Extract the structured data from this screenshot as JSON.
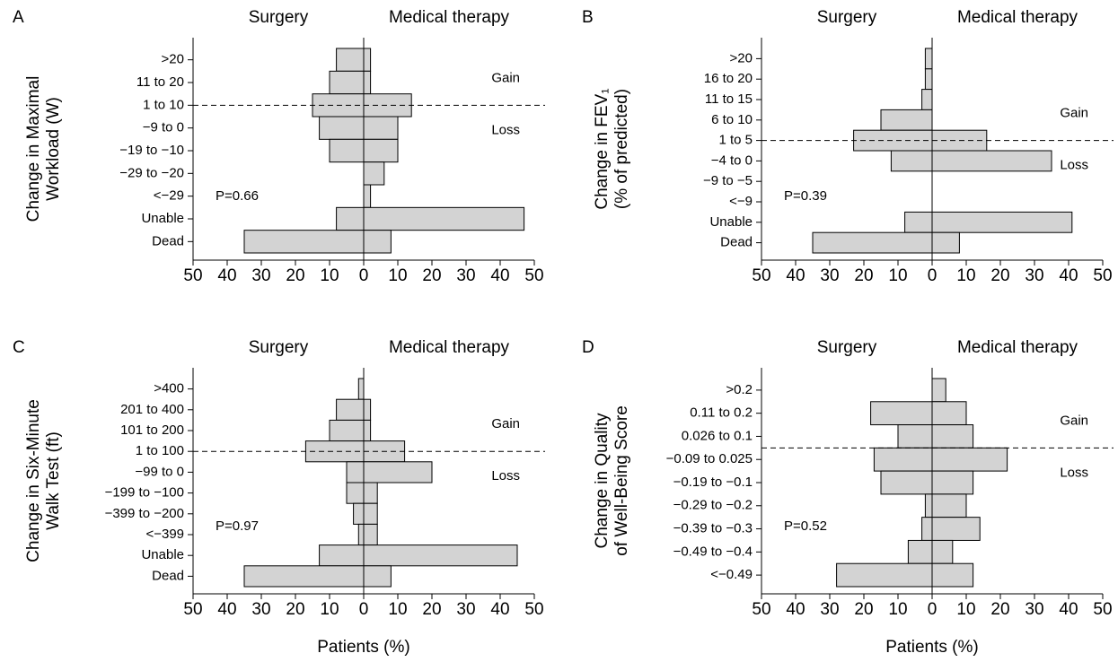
{
  "chart_data": [
    {
      "type": "bar",
      "orientation": "horizontal",
      "panel": "A",
      "ylabel": [
        "Change in Maximal",
        "Workload (W)"
      ],
      "categories": [
        ">20",
        "11 to 20",
        "1 to 10",
        "−9 to 0",
        "−19 to −10",
        "−29 to −20",
        "<−29",
        "Unable",
        "Dead"
      ],
      "series": [
        {
          "name": "Surgery",
          "color": "#d3d3d3",
          "side": "left",
          "values": [
            8,
            10,
            15,
            13,
            10,
            0,
            0,
            8,
            35
          ]
        },
        {
          "name": "Medical therapy",
          "color": "#d3d3d3",
          "side": "right",
          "values": [
            2,
            2,
            14,
            10,
            10,
            6,
            2,
            47,
            8
          ]
        }
      ],
      "xlim": [
        -50,
        50
      ],
      "xticks": [
        {
          "value": -50,
          "label": "50"
        },
        {
          "value": -40,
          "label": "40"
        },
        {
          "value": -30,
          "label": "30"
        },
        {
          "value": -20,
          "label": "20"
        },
        {
          "value": -10,
          "label": "10"
        },
        0,
        10,
        20,
        30,
        40,
        50
      ],
      "divider_position": 2.5,
      "gain_label": "Gain",
      "loss_label": "Loss",
      "annotation": "P=0.66"
    },
    {
      "type": "bar",
      "orientation": "horizontal",
      "panel": "B",
      "ylabel": [
        "Change in FEV₁",
        "(% of predicted)"
      ],
      "categories": [
        ">20",
        "16 to 20",
        "11 to 15",
        "6 to 10",
        "1 to 5",
        "−4 to 0",
        "−9 to −5",
        "<−9",
        "Unable",
        "Dead"
      ],
      "series": [
        {
          "name": "Surgery",
          "color": "#d3d3d3",
          "side": "left",
          "values": [
            2,
            2,
            3,
            15,
            23,
            12,
            0,
            0,
            8,
            35
          ]
        },
        {
          "name": "Medical therapy",
          "color": "#d3d3d3",
          "side": "right",
          "values": [
            0,
            0,
            0,
            0,
            16,
            35,
            0,
            0,
            41,
            8
          ]
        }
      ],
      "xlim": [
        -50,
        50
      ],
      "xticks": [
        {
          "value": -50,
          "label": "50"
        },
        {
          "value": -40,
          "label": "40"
        },
        {
          "value": -30,
          "label": "30"
        },
        {
          "value": -20,
          "label": "20"
        },
        {
          "value": -10,
          "label": "10"
        },
        0,
        10,
        20,
        30,
        40,
        50
      ],
      "divider_position": 4.5,
      "gain_label": "Gain",
      "loss_label": "Loss",
      "annotation": "P=0.39"
    },
    {
      "type": "bar",
      "orientation": "horizontal",
      "panel": "C",
      "ylabel": [
        "Change in Six-Minute",
        "Walk Test (ft)"
      ],
      "xlabel": "Patients (%)",
      "categories": [
        ">400",
        "201 to 400",
        "101 to 200",
        "1 to 100",
        "−99 to 0",
        "−199 to −100",
        "−399 to −200",
        "<−399",
        "Unable",
        "Dead"
      ],
      "series": [
        {
          "name": "Surgery",
          "color": "#d3d3d3",
          "side": "left",
          "values": [
            1.5,
            8,
            10,
            17,
            5,
            5,
            3,
            1.5,
            13,
            35
          ]
        },
        {
          "name": "Medical therapy",
          "color": "#d3d3d3",
          "side": "right",
          "values": [
            0,
            2,
            2,
            12,
            20,
            4,
            4,
            4,
            45,
            8
          ]
        }
      ],
      "xlim": [
        -50,
        50
      ],
      "xticks": [
        {
          "value": -50,
          "label": "50"
        },
        {
          "value": -40,
          "label": "40"
        },
        {
          "value": -30,
          "label": "30"
        },
        {
          "value": -20,
          "label": "20"
        },
        {
          "value": -10,
          "label": "10"
        },
        0,
        10,
        20,
        30,
        40,
        50
      ],
      "divider_position": 3.5,
      "gain_label": "Gain",
      "loss_label": "Loss",
      "annotation": "P=0.97"
    },
    {
      "type": "bar",
      "orientation": "horizontal",
      "panel": "D",
      "ylabel": [
        "Change in Quality",
        "of Well-Being Score"
      ],
      "xlabel": "Patients (%)",
      "categories": [
        ">0.2",
        "0.11 to 0.2",
        "0.026 to 0.1",
        "−0.09 to 0.025",
        "−0.19 to −0.1",
        "−0.29 to −0.2",
        "−0.39 to −0.3",
        "−0.49 to −0.4",
        "<−0.49"
      ],
      "series": [
        {
          "name": "Surgery",
          "color": "#d3d3d3",
          "side": "left",
          "values": [
            0,
            18,
            10,
            17,
            15,
            2,
            3,
            7,
            28
          ]
        },
        {
          "name": "Medical therapy",
          "color": "#d3d3d3",
          "side": "right",
          "values": [
            4,
            10,
            12,
            22,
            12,
            10,
            14,
            6,
            12
          ]
        }
      ],
      "xlim": [
        -50,
        50
      ],
      "xticks": [
        {
          "value": -50,
          "label": "50"
        },
        {
          "value": -40,
          "label": "40"
        },
        {
          "value": -30,
          "label": "30"
        },
        {
          "value": -20,
          "label": "20"
        },
        {
          "value": -10,
          "label": "10"
        },
        0,
        10,
        20,
        30,
        40,
        50
      ],
      "divider_position": 3,
      "gain_label": "Gain",
      "loss_label": "Loss",
      "annotation": "P=0.52"
    }
  ]
}
